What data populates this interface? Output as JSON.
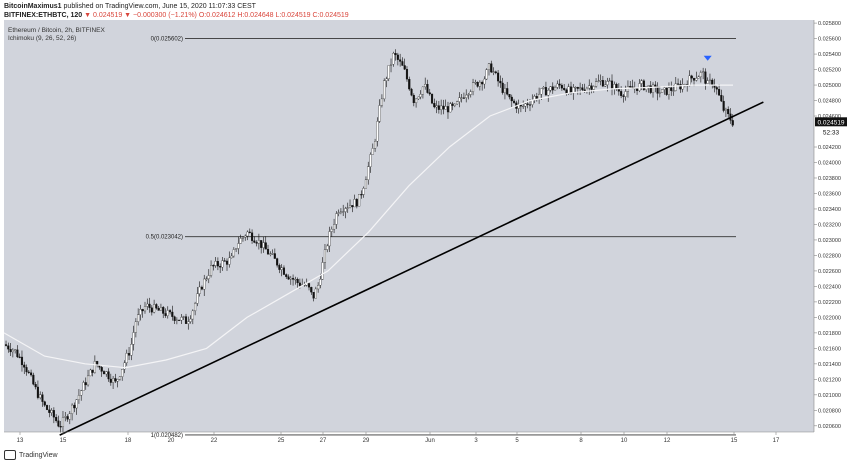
{
  "header": {
    "publisher": "BitcoinMaximus1",
    "published_text": "published on TradingView.com, June 15, 2020 11:07:33 CEST",
    "symbol": "BITFINEX:ETHBTC, 120",
    "arrow": "▼",
    "ohlc": "0.024519 ▼ −0.000300 (−1.21%) O:0.024612 H:0.024648 L:0.024519 C:0.024519"
  },
  "legend": {
    "title": "Ethereum / Bitcoin, 2h, BITFINEX",
    "indicator": "Ichimoku (9, 26, 52, 26)"
  },
  "footer": {
    "brand": "TradingView"
  },
  "colors": {
    "plot_bg": "#d1d4dc",
    "candle": "#111111",
    "ma_line": "#f4f4f6",
    "trendline": "#000000",
    "fib": "#333333",
    "price_tag_bg": "#111111",
    "arrow": "#2962ff"
  },
  "chart_data": {
    "type": "candlestick",
    "pair": "ETH/BTC",
    "timeframe": "2h",
    "x_ticks": [
      "13",
      "15",
      "18",
      "20",
      "22",
      "25",
      "27",
      "29",
      "Jun",
      "3",
      "5",
      "8",
      "10",
      "12",
      "15",
      "17"
    ],
    "y_ticks": [
      "0.025800",
      "0.025600",
      "0.025400",
      "0.025200",
      "0.025000",
      "0.024800",
      "0.024600",
      "0.024200",
      "0.024000",
      "0.023800",
      "0.023600",
      "0.023400",
      "0.023200",
      "0.023000",
      "0.022800",
      "0.022600",
      "0.022400",
      "0.022200",
      "0.022000",
      "0.021800",
      "0.021600",
      "0.021400",
      "0.021200",
      "0.021000",
      "0.020800",
      "0.020600"
    ],
    "ylim": [
      0.02052,
      0.02584
    ],
    "last_price": "0.024519",
    "countdown": "52:33",
    "fib_levels": [
      {
        "label": "0(0.025602)",
        "value": 0.025602
      },
      {
        "label": "0.5(0.023042)",
        "value": 0.023042
      },
      {
        "label": "1(0.020482)",
        "value": 0.020482
      }
    ],
    "price_path": [
      [
        0,
        0.02165
      ],
      [
        2,
        0.02158
      ],
      [
        4,
        0.0214
      ],
      [
        6,
        0.0211
      ],
      [
        8,
        0.02085
      ],
      [
        10,
        0.0207
      ],
      [
        11,
        0.0206
      ],
      [
        12,
        0.02068
      ],
      [
        14,
        0.0209
      ],
      [
        16,
        0.02115
      ],
      [
        18,
        0.0214
      ],
      [
        20,
        0.0213
      ],
      [
        22,
        0.02115
      ],
      [
        23,
        0.0213
      ],
      [
        25,
        0.0216
      ],
      [
        26,
        0.02195
      ],
      [
        28,
        0.02215
      ],
      [
        30,
        0.0221
      ],
      [
        32,
        0.02205
      ],
      [
        34,
        0.022
      ],
      [
        36,
        0.02195
      ],
      [
        37,
        0.02205
      ],
      [
        39,
        0.0224
      ],
      [
        41,
        0.02265
      ],
      [
        43,
        0.0227
      ],
      [
        45,
        0.02275
      ],
      [
        46,
        0.02295
      ],
      [
        48,
        0.0231
      ],
      [
        50,
        0.023
      ],
      [
        52,
        0.02285
      ],
      [
        54,
        0.0227
      ],
      [
        56,
        0.02255
      ],
      [
        58,
        0.02245
      ],
      [
        60,
        0.0224
      ],
      [
        61,
        0.02225
      ],
      [
        62,
        0.0224
      ],
      [
        64,
        0.023
      ],
      [
        66,
        0.0234
      ],
      [
        68,
        0.02345
      ],
      [
        70,
        0.0235
      ],
      [
        71,
        0.0237
      ],
      [
        73,
        0.0242
      ],
      [
        75,
        0.025
      ],
      [
        77,
        0.0254
      ],
      [
        79,
        0.0252
      ],
      [
        81,
        0.0248
      ],
      [
        83,
        0.025
      ],
      [
        85,
        0.0247
      ],
      [
        87,
        0.0247
      ],
      [
        89,
        0.0247
      ],
      [
        91,
        0.0249
      ],
      [
        93,
        0.025
      ],
      [
        95,
        0.0251
      ],
      [
        96,
        0.02525
      ],
      [
        98,
        0.025
      ],
      [
        100,
        0.0248
      ],
      [
        102,
        0.0247
      ],
      [
        104,
        0.0248
      ],
      [
        106,
        0.0249
      ],
      [
        108,
        0.02495
      ],
      [
        110,
        0.025
      ],
      [
        112,
        0.0249
      ],
      [
        114,
        0.02495
      ],
      [
        116,
        0.025
      ],
      [
        118,
        0.02505
      ],
      [
        120,
        0.025
      ],
      [
        122,
        0.0249
      ],
      [
        124,
        0.02495
      ],
      [
        126,
        0.025
      ],
      [
        128,
        0.02495
      ],
      [
        130,
        0.0249
      ],
      [
        132,
        0.02495
      ],
      [
        134,
        0.025
      ],
      [
        136,
        0.0251
      ],
      [
        138,
        0.02515
      ],
      [
        139,
        0.025
      ],
      [
        140,
        0.02505
      ],
      [
        141,
        0.0249
      ],
      [
        142,
        0.0247
      ],
      [
        143,
        0.0246
      ],
      [
        144,
        0.02452
      ]
    ],
    "ma_path": [
      [
        0,
        0.0218
      ],
      [
        8,
        0.0215
      ],
      [
        16,
        0.0214
      ],
      [
        24,
        0.02135
      ],
      [
        32,
        0.02145
      ],
      [
        40,
        0.0216
      ],
      [
        48,
        0.022
      ],
      [
        56,
        0.0223
      ],
      [
        64,
        0.0226
      ],
      [
        72,
        0.0231
      ],
      [
        80,
        0.0237
      ],
      [
        88,
        0.0242
      ],
      [
        96,
        0.0246
      ],
      [
        104,
        0.0248
      ],
      [
        112,
        0.0249
      ],
      [
        120,
        0.02495
      ],
      [
        128,
        0.02497
      ],
      [
        136,
        0.025
      ],
      [
        144,
        0.025
      ]
    ],
    "trendline": [
      [
        11,
        0.02048
      ],
      [
        150,
        0.02478
      ]
    ]
  }
}
